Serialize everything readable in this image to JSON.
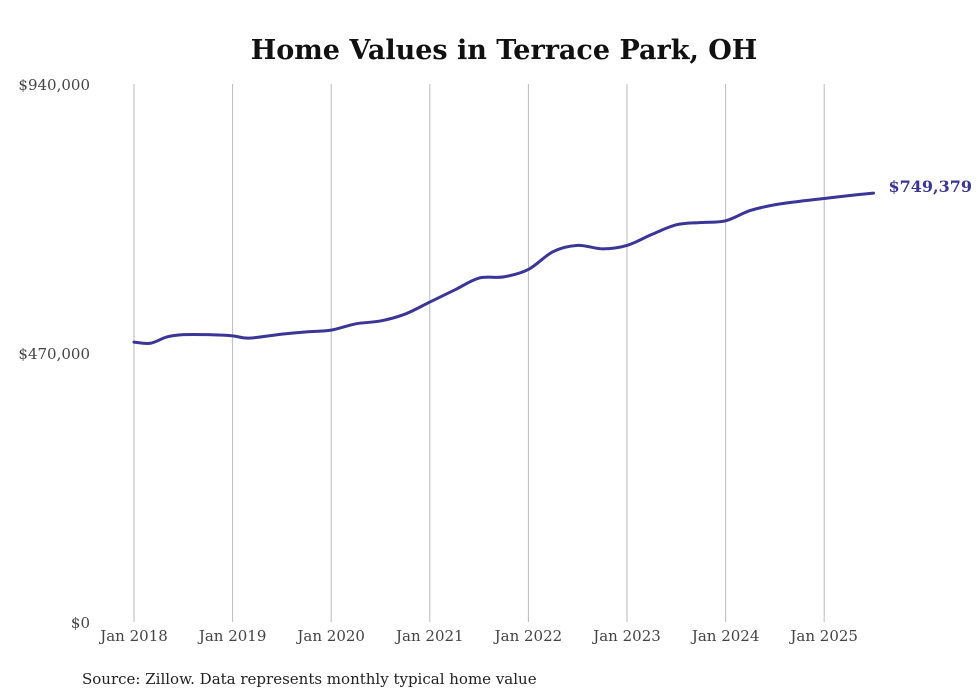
{
  "chart_data": {
    "type": "line",
    "title": "Home Values in Terrace Park, OH",
    "source": "Source: Zillow. Data represents monthly typical home value",
    "xlabel": "",
    "ylabel": "",
    "ylim": [
      0,
      940000
    ],
    "y_ticks": [
      "$0",
      "$470,000",
      "$940,000"
    ],
    "y_tick_values": [
      0,
      470000,
      940000
    ],
    "x_ticks": [
      "Jan 2018",
      "Jan 2019",
      "Jan 2020",
      "Jan 2021",
      "Jan 2022",
      "Jan 2023",
      "Jan 2024",
      "Jan 2025"
    ],
    "grid": "vertical",
    "color": "#3a3596",
    "end_label": "$749,379",
    "series": [
      {
        "name": "Typical home value",
        "x_months_since_jan_2018": [
          0,
          2,
          4,
          6,
          9,
          12,
          14,
          18,
          21,
          24,
          27,
          30,
          33,
          36,
          39,
          42,
          45,
          48,
          51,
          54,
          57,
          60,
          63,
          66,
          69,
          72,
          75,
          78,
          81,
          84,
          87,
          90
        ],
        "values": [
          489000,
          487000,
          498000,
          502000,
          502000,
          500000,
          496000,
          503000,
          507000,
          510000,
          521000,
          526000,
          538000,
          559000,
          580000,
          601000,
          603000,
          616000,
          647000,
          658000,
          652000,
          658000,
          677000,
          694000,
          698000,
          701000,
          719000,
          729000,
          735000,
          740000,
          745000,
          749379
        ]
      }
    ]
  }
}
